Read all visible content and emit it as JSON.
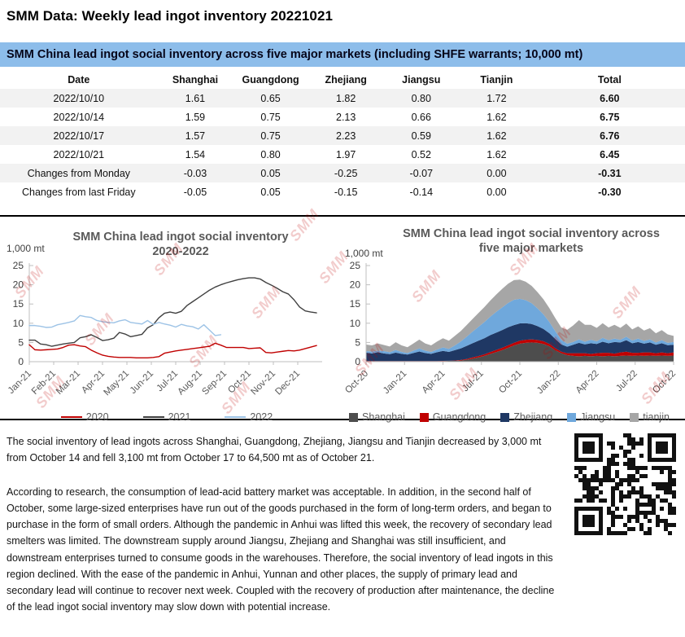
{
  "page": {
    "title": "SMM Data: Weekly lead ingot inventory 20221021",
    "banner": "SMM China lead ingot social inventory across five major markets (including SHFE warrants; 10,000 mt)"
  },
  "table": {
    "headers": [
      "Date",
      "Shanghai",
      "Guangdong",
      "Zhejiang",
      "Jiangsu",
      "Tianjin",
      "Total"
    ],
    "rows": [
      [
        "2022/10/10",
        "1.61",
        "0.65",
        "1.82",
        "0.80",
        "1.72",
        "6.60"
      ],
      [
        "2022/10/14",
        "1.59",
        "0.75",
        "2.13",
        "0.66",
        "1.62",
        "6.75"
      ],
      [
        "2022/10/17",
        "1.57",
        "0.75",
        "2.23",
        "0.59",
        "1.62",
        "6.76"
      ],
      [
        "2022/10/21",
        "1.54",
        "0.80",
        "1.97",
        "0.52",
        "1.62",
        "6.45"
      ],
      [
        "Changes from Monday",
        "-0.03",
        "0.05",
        "-0.25",
        "-0.07",
        "0.00",
        "-0.31"
      ],
      [
        "Changes from last Friday",
        "-0.05",
        "0.05",
        "-0.15",
        "-0.14",
        "0.00",
        "-0.30"
      ]
    ]
  },
  "chart_data": [
    {
      "type": "line",
      "title": "SMM China lead ingot social inventory 2020-2022",
      "unit_label": "1,000 mt",
      "ylabel": "1,000 mt",
      "ylim": [
        0,
        25
      ],
      "yticks": [
        0,
        5,
        10,
        15,
        20,
        25
      ],
      "x_months": 12,
      "x_tick_labels": [
        "Jan-21",
        "Feb-21",
        "Mar-21",
        "Apr-21",
        "May-21",
        "Jun-21",
        "Jul-21",
        "Aug-21",
        "Sep-21",
        "Oct-21",
        "Nov-21",
        "Dec-21"
      ],
      "points_per_span": 52,
      "legend_position": "bottom",
      "grid": false,
      "series": [
        {
          "name": "2020",
          "color": "#C00000",
          "values": [
            4.4,
            3.1,
            3.0,
            3.1,
            3.2,
            3.3,
            3.7,
            4.3,
            4.4,
            4.1,
            3.9,
            3.0,
            2.3,
            1.7,
            1.4,
            1.2,
            1.1,
            1.1,
            1.1,
            1.0,
            1.0,
            1.0,
            1.1,
            1.3,
            2.2,
            2.5,
            2.8,
            3.0,
            3.2,
            3.4,
            3.6,
            3.8,
            4.0,
            4.8,
            4.3,
            3.7,
            3.7,
            3.7,
            3.7,
            3.4,
            3.5,
            3.6,
            2.4,
            2.3,
            2.5,
            2.7,
            2.9,
            2.8,
            3.0,
            3.4,
            3.8,
            4.2
          ]
        },
        {
          "name": "2021",
          "color": "#404040",
          "values": [
            5.6,
            5.6,
            4.6,
            4.4,
            4.0,
            4.3,
            4.6,
            4.8,
            5.0,
            6.2,
            6.5,
            7.0,
            6.3,
            5.5,
            5.7,
            6.1,
            7.6,
            7.2,
            6.5,
            6.8,
            7.1,
            8.8,
            9.6,
            11.4,
            12.6,
            12.9,
            12.6,
            13.1,
            14.6,
            15.6,
            16.6,
            17.6,
            18.6,
            19.4,
            20.0,
            20.5,
            20.9,
            21.3,
            21.6,
            21.8,
            21.8,
            21.5,
            20.6,
            19.9,
            19.1,
            18.2,
            17.6,
            16.1,
            14.2,
            13.2,
            12.9,
            12.7
          ]
        },
        {
          "name": "2022",
          "color": "#9DC3E6",
          "values": [
            9.4,
            9.4,
            9.2,
            8.9,
            9.0,
            9.6,
            9.9,
            10.2,
            10.6,
            12.0,
            11.7,
            11.5,
            10.7,
            10.4,
            10.2,
            10.1,
            10.6,
            10.9,
            10.2,
            10.0,
            9.8,
            10.7,
            9.7,
            10.2,
            9.8,
            9.5,
            9.0,
            9.7,
            9.3,
            9.1,
            8.5,
            9.6,
            8.2,
            6.8,
            7.0
          ]
        }
      ]
    },
    {
      "type": "area",
      "stacked": true,
      "title": "SMM China lead ingot social inventory across five major markets",
      "unit_label": "1,000 mt",
      "ylabel": "1,000 mt",
      "ylim": [
        0,
        25
      ],
      "yticks": [
        0,
        5,
        10,
        15,
        20,
        25
      ],
      "x_months": 24,
      "x_tick_every": 3,
      "x_tick_labels": [
        "Oct-20",
        "Jan-21",
        "Apr-21",
        "Jul-21",
        "Oct-21",
        "Jan-22",
        "Apr-22",
        "Jul-22",
        "Oct-22"
      ],
      "legend_position": "bottom",
      "grid": false,
      "series": [
        {
          "name": "Shanghai",
          "color": "#4D4D4D",
          "values": [
            0.1,
            0.1,
            0.1,
            0.1,
            0.1,
            0.1,
            0.1,
            0.1,
            0.1,
            0.1,
            0.1,
            0.1,
            0.1,
            0.15,
            0.2,
            0.2,
            0.3,
            0.5,
            0.8,
            1.1,
            1.5,
            2.0,
            2.5,
            3.0,
            3.6,
            4.2,
            4.7,
            4.9,
            5.0,
            4.9,
            4.6,
            4.0,
            3.0,
            2.2,
            1.7,
            1.5,
            1.4,
            1.5,
            1.4,
            1.5,
            1.4,
            1.5,
            1.4,
            1.5,
            1.6,
            1.5,
            1.6,
            1.5,
            1.6,
            1.5,
            1.6,
            1.5,
            1.6
          ]
        },
        {
          "name": "Guangdong",
          "color": "#C00000",
          "values": [
            0.05,
            0.05,
            0.05,
            0.05,
            0.05,
            0.05,
            0.05,
            0.05,
            0.05,
            0.05,
            0.05,
            0.05,
            0.05,
            0.05,
            0.05,
            0.1,
            0.15,
            0.2,
            0.3,
            0.35,
            0.4,
            0.5,
            0.55,
            0.6,
            0.65,
            0.7,
            0.75,
            0.8,
            0.8,
            0.75,
            0.7,
            0.6,
            0.5,
            0.4,
            0.5,
            0.7,
            0.8,
            0.7,
            0.6,
            0.7,
            0.9,
            0.8,
            0.7,
            0.9,
            1.0,
            0.8,
            0.7,
            0.9,
            0.8,
            0.7,
            0.8,
            0.7,
            0.8
          ]
        },
        {
          "name": "Zhejiang",
          "color": "#1F3864",
          "values": [
            2.2,
            2.0,
            2.3,
            2.0,
            1.8,
            2.2,
            1.9,
            1.7,
            2.1,
            2.5,
            2.1,
            1.9,
            2.3,
            2.6,
            2.3,
            2.7,
            3.0,
            3.4,
            3.7,
            4.0,
            4.2,
            4.4,
            4.5,
            4.6,
            4.7,
            4.6,
            4.5,
            4.3,
            4.0,
            3.6,
            3.2,
            2.8,
            2.4,
            1.9,
            1.7,
            2.2,
            2.7,
            2.3,
            2.8,
            2.4,
            2.9,
            2.5,
            3.0,
            2.6,
            3.0,
            2.5,
            2.8,
            2.3,
            2.6,
            2.2,
            2.4,
            2.1,
            2.0
          ]
        },
        {
          "name": "Jiangsu",
          "color": "#6FA8DC",
          "values": [
            0.4,
            0.5,
            0.4,
            0.6,
            0.5,
            0.7,
            0.5,
            0.4,
            0.6,
            0.8,
            0.6,
            0.5,
            0.7,
            0.9,
            0.8,
            1.2,
            1.8,
            2.4,
            3.0,
            3.6,
            4.2,
            4.8,
            5.4,
            5.9,
            6.3,
            6.6,
            6.4,
            6.0,
            5.4,
            4.6,
            3.8,
            2.9,
            2.0,
            1.2,
            0.8,
            0.7,
            0.9,
            0.7,
            0.9,
            0.7,
            1.0,
            0.8,
            0.9,
            0.7,
            0.9,
            0.7,
            0.9,
            0.7,
            0.8,
            0.6,
            0.8,
            0.6,
            0.7
          ]
        },
        {
          "name": "tianjin",
          "color": "#A6A6A6",
          "values": [
            1.7,
            1.6,
            1.9,
            1.6,
            1.5,
            2.0,
            1.7,
            1.5,
            1.9,
            2.3,
            1.9,
            1.7,
            2.1,
            2.4,
            2.1,
            2.5,
            2.7,
            3.0,
            3.3,
            3.6,
            3.9,
            4.2,
            4.5,
            4.8,
            5.0,
            5.1,
            5.0,
            4.8,
            4.5,
            4.2,
            3.9,
            3.6,
            3.4,
            3.2,
            3.6,
            4.3,
            5.0,
            4.4,
            3.9,
            3.5,
            3.8,
            3.3,
            3.6,
            3.1,
            3.4,
            2.9,
            3.2,
            2.7,
            2.9,
            2.4,
            2.6,
            2.2,
            1.6
          ]
        }
      ]
    }
  ],
  "watermark": "SMM",
  "report": {
    "paragraphs": [
      "The social inventory of lead ingots across Shanghai, Guangdong, Zhejiang, Jiangsu and Tianjin decreased by 3,000 mt from October 14 and fell 3,100 mt from October 17 to 64,500 mt as of October 21.",
      "According to research, the consumption of lead-acid battery market was acceptable. In addition, in the second half of October, some large-sized enterprises have run out of the goods purchased in the form of long-term orders, and began to purchase in the form of small orders. Although the pandemic in Anhui was lifted this week, the recovery of secondary lead smelters was limited. The downstream supply around Jiangsu, Zhejiang and Shanghai was still insufficient, and downstream enterprises turned to consume goods in the warehouses. Therefore, the social inventory of lead ingots in this region declined. With the ease of the pandemic in Anhui, Yunnan and other places, the supply of primary lead and secondary lead will continue to recover next week. Coupled with the recovery of production after maintenance, the decline of the lead ingot social inventory may slow down with potential increase."
    ]
  }
}
